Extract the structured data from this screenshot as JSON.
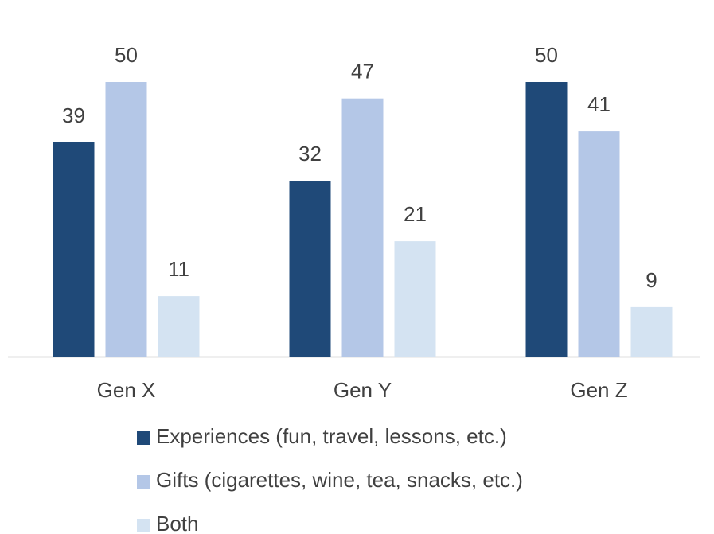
{
  "chart_data": {
    "type": "bar",
    "categories": [
      "Gen X",
      "Gen Y",
      "Gen Z"
    ],
    "series": [
      {
        "name": "Experiences (fun, travel, lessons, etc.)",
        "color": "#1f4978",
        "values": [
          39,
          32,
          50
        ]
      },
      {
        "name": "Gifts (cigarettes, wine, tea, snacks, etc.)",
        "color": "#b4c7e7",
        "values": [
          50,
          47,
          41
        ]
      },
      {
        "name": "Both",
        "color": "#d4e3f2",
        "values": [
          11,
          21,
          9
        ]
      }
    ]
  }
}
